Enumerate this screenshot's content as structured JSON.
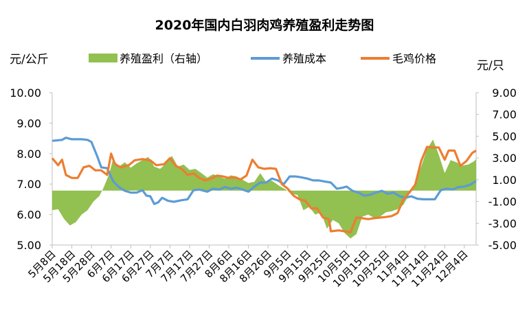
{
  "chart_data": {
    "type": "line",
    "title": "2020年国内白羽肉鸡养殖盈利走势图",
    "left_unit": "元/公斤",
    "right_unit": "元/只",
    "legend": {
      "placement": "top",
      "entries": [
        "养殖盈利（右轴）",
        "养殖成本",
        "毛鸡价格"
      ]
    },
    "y_left": {
      "range": [
        5.0,
        10.0
      ],
      "ticks": [
        "5.00",
        "6.00",
        "7.00",
        "8.00",
        "9.00",
        "10.00"
      ]
    },
    "y_right": {
      "range": [
        -5.0,
        9.0
      ],
      "ticks": [
        "-5.00",
        "-3.00",
        "-1.00",
        "1.00",
        "3.00",
        "5.00",
        "7.00",
        "9.00"
      ]
    },
    "x_tick_labels": [
      "5月8日",
      "5月18日",
      "5月28日",
      "6月7日",
      "6月17日",
      "6月27日",
      "7月7日",
      "7月17日",
      "7月27日",
      "8月6日",
      "8月16日",
      "8月26日",
      "9月5日",
      "9月15日",
      "9月25日",
      "10月5日",
      "10月15日",
      "10月25日",
      "11月4日",
      "11月14日",
      "11月24日",
      "12月4日"
    ],
    "x_range_days": [
      "5月8日",
      "12月10日"
    ],
    "colors": {
      "profit": "#92c051",
      "cost": "#5b9bd5",
      "price": "#ed7d31",
      "axis": "#bfbfbf"
    },
    "series": [
      {
        "name": "养殖盈利（右轴）",
        "axis": "right",
        "style": "area",
        "points": [
          [
            "5月8日",
            -1.8
          ],
          [
            "5月11日",
            -1.7
          ],
          [
            "5月14日",
            -2.6
          ],
          [
            "5月17日",
            -3.2
          ],
          [
            "5月20日",
            -2.9
          ],
          [
            "5月23日",
            -2.2
          ],
          [
            "5月26日",
            -1.8
          ],
          [
            "5月29日",
            -1.0
          ],
          [
            "6月1日",
            -0.5
          ],
          [
            "6月3日",
            0.2
          ],
          [
            "6月6日",
            1.5
          ],
          [
            "6月8日",
            2.9
          ],
          [
            "6月11日",
            2.2
          ],
          [
            "6月14日",
            2.6
          ],
          [
            "6月17日",
            2.1
          ],
          [
            "6月20日",
            2.5
          ],
          [
            "6月23日",
            2.8
          ],
          [
            "6月26日",
            3.1
          ],
          [
            "6月29日",
            2.2
          ],
          [
            "7月2日",
            2.0
          ],
          [
            "7月5日",
            2.5
          ],
          [
            "7月8日",
            3.2
          ],
          [
            "7月11日",
            2.2
          ],
          [
            "7月14日",
            2.4
          ],
          [
            "7月17日",
            1.9
          ],
          [
            "7月20日",
            2.0
          ],
          [
            "7月23日",
            1.6
          ],
          [
            "7月26日",
            1.2
          ],
          [
            "7月29日",
            1.5
          ],
          [
            "8月1日",
            1.3
          ],
          [
            "8月4日",
            1.1
          ],
          [
            "8月7日",
            1.4
          ],
          [
            "8月10日",
            1.3
          ],
          [
            "8月13日",
            1.0
          ],
          [
            "8月16日",
            0.7
          ],
          [
            "8月19日",
            0.8
          ],
          [
            "8月22日",
            1.6
          ],
          [
            "8月25日",
            0.8
          ],
          [
            "8月28日",
            0.9
          ],
          [
            "9月1日",
            0.4
          ],
          [
            "9月4日",
            0.1
          ],
          [
            "9月7日",
            -0.3
          ],
          [
            "9月10日",
            -0.4
          ],
          [
            "9月13日",
            -1.8
          ],
          [
            "9月16日",
            -1.5
          ],
          [
            "9月19日",
            -2.2
          ],
          [
            "9月22日",
            -2.0
          ],
          [
            "9月25日",
            -3.5
          ],
          [
            "9月28日",
            -2.7
          ],
          [
            "10月1日",
            -3.0
          ],
          [
            "10月4日",
            -3.9
          ],
          [
            "10月7日",
            -4.4
          ],
          [
            "10月10日",
            -4.0
          ],
          [
            "10月13日",
            -2.4
          ],
          [
            "10月16日",
            -2.2
          ],
          [
            "10月19日",
            -2.5
          ],
          [
            "10月22日",
            -2.4
          ],
          [
            "10月25日",
            -2.0
          ],
          [
            "10月28日",
            -1.9
          ],
          [
            "10月31日",
            -1.7
          ],
          [
            "11月3日",
            -1.3
          ],
          [
            "11月6日",
            -0.3
          ],
          [
            "11月9日",
            0.7
          ],
          [
            "11月12日",
            2.2
          ],
          [
            "11月15日",
            3.8
          ],
          [
            "11月18日",
            4.7
          ],
          [
            "11月21日",
            3.3
          ],
          [
            "11月24日",
            1.6
          ],
          [
            "11月27日",
            2.8
          ],
          [
            "11月30日",
            2.6
          ],
          [
            "12月3日",
            2.3
          ],
          [
            "12月6日",
            2.4
          ],
          [
            "12月9日",
            2.7
          ],
          [
            "12月10日",
            2.9
          ]
        ]
      },
      {
        "name": "养殖成本",
        "axis": "left",
        "style": "line",
        "points": [
          [
            "5月8日",
            8.42
          ],
          [
            "5月13日",
            8.45
          ],
          [
            "5月15日",
            8.52
          ],
          [
            "5月18日",
            8.47
          ],
          [
            "5月23日",
            8.47
          ],
          [
            "5月26日",
            8.45
          ],
          [
            "5月28日",
            8.38
          ],
          [
            "5月31日",
            7.9
          ],
          [
            "6月2日",
            7.55
          ],
          [
            "6月5日",
            7.52
          ],
          [
            "6月8日",
            7.1
          ],
          [
            "6月11日",
            6.9
          ],
          [
            "6月14日",
            6.78
          ],
          [
            "6月17日",
            6.72
          ],
          [
            "6月20日",
            6.72
          ],
          [
            "6月23日",
            6.8
          ],
          [
            "6月25日",
            6.62
          ],
          [
            "6月27日",
            6.6
          ],
          [
            "6月29日",
            6.35
          ],
          [
            "7月1日",
            6.4
          ],
          [
            "7月3日",
            6.55
          ],
          [
            "7月6日",
            6.45
          ],
          [
            "7月9日",
            6.42
          ],
          [
            "7月13日",
            6.47
          ],
          [
            "7月16日",
            6.5
          ],
          [
            "7月19日",
            6.8
          ],
          [
            "7月22日",
            6.82
          ],
          [
            "7月26日",
            6.75
          ],
          [
            "7月29日",
            6.85
          ],
          [
            "8月1日",
            6.82
          ],
          [
            "8月4日",
            6.9
          ],
          [
            "8月7日",
            6.85
          ],
          [
            "8月10日",
            6.88
          ],
          [
            "8月13日",
            6.82
          ],
          [
            "8月16日",
            6.75
          ],
          [
            "8月19日",
            6.92
          ],
          [
            "8月22日",
            7.05
          ],
          [
            "8月25日",
            7.05
          ],
          [
            "8月28日",
            7.18
          ],
          [
            "8月31日",
            7.12
          ],
          [
            "9月3日",
            7.0
          ],
          [
            "9月6日",
            7.25
          ],
          [
            "9月9日",
            7.25
          ],
          [
            "9月12日",
            7.22
          ],
          [
            "9月15日",
            7.18
          ],
          [
            "9月18日",
            7.12
          ],
          [
            "9月21日",
            7.12
          ],
          [
            "9月24日",
            7.08
          ],
          [
            "9月27日",
            7.05
          ],
          [
            "9月30日",
            6.85
          ],
          [
            "10月3日",
            6.88
          ],
          [
            "10月5日",
            6.92
          ],
          [
            "10月8日",
            6.78
          ],
          [
            "10月11日",
            6.72
          ],
          [
            "10月14日",
            6.62
          ],
          [
            "10月17日",
            6.65
          ],
          [
            "10月20日",
            6.72
          ],
          [
            "10月23日",
            6.78
          ],
          [
            "10月26日",
            6.68
          ],
          [
            "10月29日",
            6.72
          ],
          [
            "11月1日",
            6.6
          ],
          [
            "11月4日",
            6.55
          ],
          [
            "11月7日",
            6.6
          ],
          [
            "11月10日",
            6.52
          ],
          [
            "11月13日",
            6.5
          ],
          [
            "11月16日",
            6.5
          ],
          [
            "11月19日",
            6.5
          ],
          [
            "11月22日",
            6.8
          ],
          [
            "11月25日",
            6.85
          ],
          [
            "11月28日",
            6.82
          ],
          [
            "12月1日",
            6.9
          ],
          [
            "12月4日",
            6.92
          ],
          [
            "12月7日",
            6.98
          ],
          [
            "12月10日",
            7.1
          ]
        ]
      },
      {
        "name": "毛鸡价格",
        "axis": "left",
        "style": "line",
        "points": [
          [
            "5月8日",
            7.85
          ],
          [
            "5月11日",
            7.62
          ],
          [
            "5月13日",
            7.8
          ],
          [
            "5月15日",
            7.3
          ],
          [
            "5月18日",
            7.2
          ],
          [
            "5月21日",
            7.2
          ],
          [
            "5月24日",
            7.55
          ],
          [
            "5月27日",
            7.6
          ],
          [
            "5月30日",
            7.45
          ],
          [
            "6月2日",
            7.45
          ],
          [
            "6月5日",
            7.3
          ],
          [
            "6月7日",
            8.0
          ],
          [
            "6月9日",
            7.65
          ],
          [
            "6月12日",
            7.55
          ],
          [
            "6月16日",
            7.62
          ],
          [
            "6月19日",
            7.78
          ],
          [
            "6月23日",
            7.82
          ],
          [
            "6月27日",
            7.78
          ],
          [
            "6月30日",
            7.62
          ],
          [
            "7月4日",
            7.65
          ],
          [
            "7月7日",
            7.85
          ],
          [
            "7月10日",
            7.6
          ],
          [
            "7月13日",
            7.5
          ],
          [
            "7月16日",
            7.3
          ],
          [
            "7月19日",
            7.35
          ],
          [
            "7月22日",
            7.2
          ],
          [
            "7月25日",
            7.12
          ],
          [
            "7月28日",
            7.18
          ],
          [
            "7月31日",
            7.28
          ],
          [
            "8月3日",
            7.25
          ],
          [
            "8月6日",
            7.2
          ],
          [
            "8月9日",
            7.22
          ],
          [
            "8月12日",
            7.15
          ],
          [
            "8月15日",
            7.28
          ],
          [
            "8月18日",
            7.8
          ],
          [
            "8月21日",
            7.55
          ],
          [
            "8月24日",
            7.5
          ],
          [
            "8月27日",
            7.52
          ],
          [
            "8月30日",
            7.5
          ],
          [
            "9月2日",
            7.0
          ],
          [
            "9月5日",
            6.85
          ],
          [
            "9月8日",
            6.62
          ],
          [
            "9月11日",
            6.5
          ],
          [
            "9月14日",
            6.45
          ],
          [
            "9月17日",
            6.2
          ],
          [
            "9月20日",
            6.2
          ],
          [
            "9月23日",
            5.9
          ],
          [
            "9月26日",
            5.85
          ],
          [
            "9月27日",
            5.45
          ],
          [
            "10月1日",
            5.48
          ],
          [
            "10月4日",
            5.45
          ],
          [
            "10月7日",
            5.42
          ],
          [
            "10月10日",
            5.9
          ],
          [
            "10月13日",
            5.88
          ],
          [
            "10月16日",
            5.85
          ],
          [
            "10月19日",
            5.88
          ],
          [
            "10月22日",
            5.9
          ],
          [
            "10月25日",
            5.92
          ],
          [
            "10月28日",
            5.95
          ],
          [
            "10月31日",
            6.05
          ],
          [
            "11月3日",
            6.5
          ],
          [
            "11月6日",
            6.72
          ],
          [
            "11月9日",
            6.98
          ],
          [
            "11月12日",
            7.75
          ],
          [
            "11月15日",
            8.22
          ],
          [
            "11月18日",
            8.2
          ],
          [
            "11月21日",
            8.2
          ],
          [
            "11月24日",
            7.8
          ],
          [
            "11月26日",
            8.1
          ],
          [
            "11月29日",
            8.1
          ],
          [
            "12月2日",
            7.6
          ],
          [
            "12月5日",
            7.75
          ],
          [
            "12月8日",
            8.02
          ],
          [
            "12月10日",
            8.1
          ]
        ]
      }
    ]
  }
}
